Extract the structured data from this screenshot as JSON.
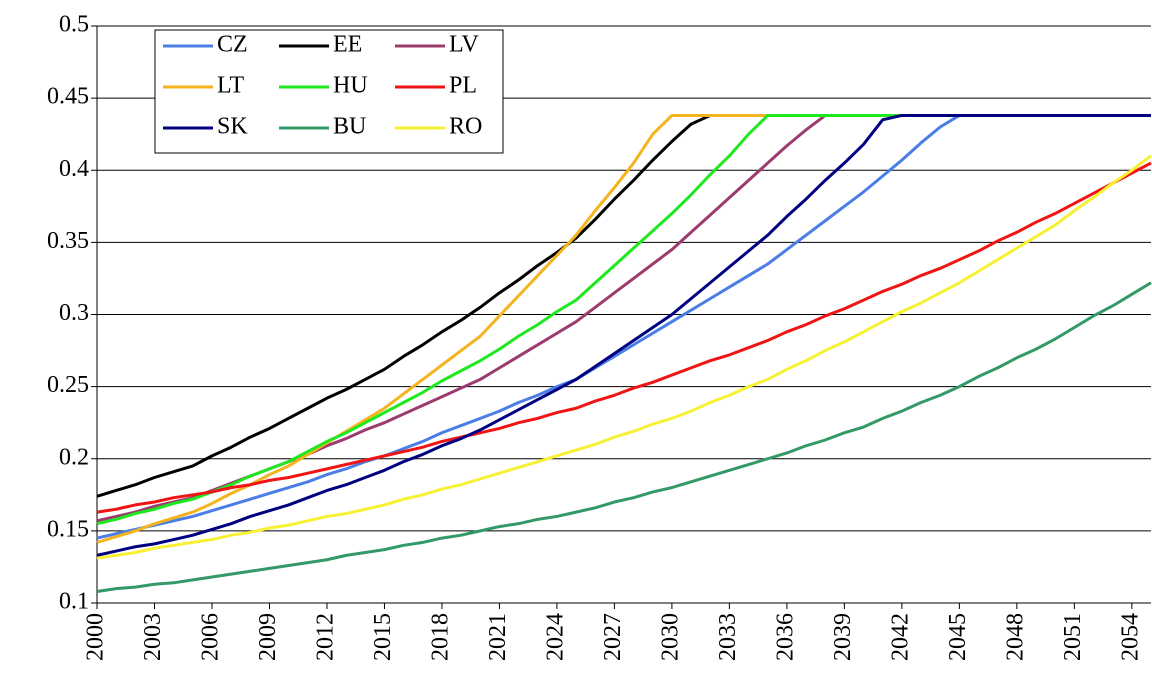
{
  "chart_data": {
    "type": "line",
    "x": [
      2000,
      2001,
      2002,
      2003,
      2004,
      2005,
      2006,
      2007,
      2008,
      2009,
      2010,
      2011,
      2012,
      2013,
      2014,
      2015,
      2016,
      2017,
      2018,
      2019,
      2020,
      2021,
      2022,
      2023,
      2024,
      2025,
      2026,
      2027,
      2028,
      2029,
      2030,
      2031,
      2032,
      2033,
      2034,
      2035,
      2036,
      2037,
      2038,
      2039,
      2040,
      2041,
      2042,
      2043,
      2044,
      2045,
      2046,
      2047,
      2048,
      2049,
      2050,
      2051,
      2052,
      2053,
      2054,
      2055
    ],
    "xlim": [
      2000,
      2055
    ],
    "xticks": [
      2000,
      2003,
      2006,
      2009,
      2012,
      2015,
      2018,
      2021,
      2024,
      2027,
      2030,
      2033,
      2036,
      2039,
      2042,
      2045,
      2048,
      2051,
      2054
    ],
    "ylim": [
      0.1,
      0.5
    ],
    "yticks": [
      0.1,
      0.15,
      0.2,
      0.25,
      0.3,
      0.35,
      0.4,
      0.45,
      0.5
    ],
    "grid": true,
    "legend": "upper left",
    "series": [
      {
        "name": "CZ",
        "color": "#4a7de6",
        "values": [
          0.145,
          0.148,
          0.151,
          0.154,
          0.157,
          0.16,
          0.164,
          0.168,
          0.172,
          0.176,
          0.18,
          0.184,
          0.189,
          0.193,
          0.198,
          0.202,
          0.207,
          0.212,
          0.218,
          0.223,
          0.228,
          0.233,
          0.239,
          0.244,
          0.25,
          0.255,
          0.263,
          0.271,
          0.279,
          0.287,
          0.295,
          0.303,
          0.311,
          0.319,
          0.327,
          0.335,
          0.345,
          0.355,
          0.365,
          0.375,
          0.385,
          0.396,
          0.407,
          0.419,
          0.43,
          0.438,
          0.438,
          0.438,
          0.438,
          0.438,
          0.438,
          0.438,
          0.438,
          0.438,
          0.438,
          0.438
        ]
      },
      {
        "name": "EE",
        "color": "#000000",
        "values": [
          0.174,
          0.178,
          0.182,
          0.187,
          0.191,
          0.195,
          0.202,
          0.208,
          0.215,
          0.221,
          0.228,
          0.235,
          0.242,
          0.248,
          0.255,
          0.262,
          0.271,
          0.279,
          0.288,
          0.296,
          0.305,
          0.315,
          0.324,
          0.334,
          0.343,
          0.353,
          0.366,
          0.38,
          0.393,
          0.407,
          0.42,
          0.432,
          0.438,
          0.438,
          0.438,
          0.438,
          0.438,
          0.438,
          0.438,
          0.438,
          0.438,
          0.438,
          0.438,
          0.438,
          0.438,
          0.438,
          0.438,
          0.438,
          0.438,
          0.438,
          0.438,
          0.438,
          0.438,
          0.438,
          0.438,
          0.438
        ]
      },
      {
        "name": "LV",
        "color": "#9b3b6e",
        "values": [
          0.157,
          0.16,
          0.163,
          0.167,
          0.17,
          0.173,
          0.178,
          0.183,
          0.188,
          0.193,
          0.198,
          0.203,
          0.209,
          0.214,
          0.22,
          0.225,
          0.231,
          0.237,
          0.243,
          0.249,
          0.255,
          0.263,
          0.271,
          0.279,
          0.287,
          0.295,
          0.305,
          0.315,
          0.325,
          0.335,
          0.345,
          0.357,
          0.369,
          0.381,
          0.393,
          0.405,
          0.417,
          0.428,
          0.438,
          0.438,
          0.438,
          0.438,
          0.438,
          0.438,
          0.438,
          0.438,
          0.438,
          0.438,
          0.438,
          0.438,
          0.438,
          0.438,
          0.438,
          0.438,
          0.438,
          0.438
        ]
      },
      {
        "name": "LT",
        "color": "#f5b41e",
        "values": [
          0.142,
          0.146,
          0.15,
          0.155,
          0.159,
          0.163,
          0.169,
          0.176,
          0.182,
          0.189,
          0.195,
          0.203,
          0.211,
          0.219,
          0.227,
          0.235,
          0.245,
          0.255,
          0.265,
          0.275,
          0.285,
          0.299,
          0.313,
          0.327,
          0.341,
          0.355,
          0.372,
          0.388,
          0.405,
          0.425,
          0.438,
          0.438,
          0.438,
          0.438,
          0.438,
          0.438,
          0.438,
          0.438,
          0.438,
          0.438,
          0.438,
          0.438,
          0.438,
          0.438,
          0.438,
          0.438,
          0.438,
          0.438,
          0.438,
          0.438,
          0.438,
          0.438,
          0.438,
          0.438,
          0.438,
          0.438
        ]
      },
      {
        "name": "HU",
        "color": "#1ee81e",
        "values": [
          0.155,
          0.158,
          0.162,
          0.165,
          0.169,
          0.172,
          0.177,
          0.182,
          0.188,
          0.193,
          0.198,
          0.205,
          0.212,
          0.218,
          0.225,
          0.232,
          0.239,
          0.246,
          0.254,
          0.261,
          0.268,
          0.276,
          0.285,
          0.293,
          0.302,
          0.31,
          0.322,
          0.334,
          0.346,
          0.358,
          0.37,
          0.383,
          0.397,
          0.41,
          0.425,
          0.438,
          0.438,
          0.438,
          0.438,
          0.438,
          0.438,
          0.438,
          0.438,
          0.438,
          0.438,
          0.438,
          0.438,
          0.438,
          0.438,
          0.438,
          0.438,
          0.438,
          0.438,
          0.438,
          0.438,
          0.438
        ]
      },
      {
        "name": "PL",
        "color": "#f01414",
        "values": [
          0.163,
          0.165,
          0.168,
          0.17,
          0.173,
          0.175,
          0.177,
          0.18,
          0.182,
          0.185,
          0.187,
          0.19,
          0.193,
          0.196,
          0.199,
          0.202,
          0.205,
          0.208,
          0.212,
          0.215,
          0.218,
          0.221,
          0.225,
          0.228,
          0.232,
          0.235,
          0.24,
          0.244,
          0.249,
          0.253,
          0.258,
          0.263,
          0.268,
          0.272,
          0.277,
          0.282,
          0.288,
          0.293,
          0.299,
          0.304,
          0.31,
          0.316,
          0.321,
          0.327,
          0.332,
          0.338,
          0.344,
          0.351,
          0.357,
          0.364,
          0.37,
          0.377,
          0.384,
          0.391,
          0.398,
          0.405
        ]
      },
      {
        "name": "SK",
        "color": "#000080",
        "values": [
          0.133,
          0.136,
          0.139,
          0.141,
          0.144,
          0.147,
          0.151,
          0.155,
          0.16,
          0.164,
          0.168,
          0.173,
          0.178,
          0.182,
          0.187,
          0.192,
          0.198,
          0.203,
          0.209,
          0.214,
          0.22,
          0.227,
          0.234,
          0.241,
          0.248,
          0.255,
          0.264,
          0.273,
          0.282,
          0.291,
          0.3,
          0.311,
          0.322,
          0.333,
          0.344,
          0.355,
          0.368,
          0.38,
          0.393,
          0.405,
          0.418,
          0.435,
          0.438,
          0.438,
          0.438,
          0.438,
          0.438,
          0.438,
          0.438,
          0.438,
          0.438,
          0.438,
          0.438,
          0.438,
          0.438,
          0.438
        ]
      },
      {
        "name": "BU",
        "color": "#339966",
        "values": [
          0.108,
          0.11,
          0.111,
          0.113,
          0.114,
          0.116,
          0.118,
          0.12,
          0.122,
          0.124,
          0.126,
          0.128,
          0.13,
          0.133,
          0.135,
          0.137,
          0.14,
          0.142,
          0.145,
          0.147,
          0.15,
          0.153,
          0.155,
          0.158,
          0.16,
          0.163,
          0.166,
          0.17,
          0.173,
          0.177,
          0.18,
          0.184,
          0.188,
          0.192,
          0.196,
          0.2,
          0.204,
          0.209,
          0.213,
          0.218,
          0.222,
          0.228,
          0.233,
          0.239,
          0.244,
          0.25,
          0.257,
          0.263,
          0.27,
          0.276,
          0.283,
          0.291,
          0.299,
          0.306,
          0.314,
          0.322
        ]
      },
      {
        "name": "RO",
        "color": "#f8f032",
        "values": [
          0.131,
          0.133,
          0.135,
          0.138,
          0.14,
          0.142,
          0.144,
          0.147,
          0.149,
          0.152,
          0.154,
          0.157,
          0.16,
          0.162,
          0.165,
          0.168,
          0.172,
          0.175,
          0.179,
          0.182,
          0.186,
          0.19,
          0.194,
          0.198,
          0.202,
          0.206,
          0.21,
          0.215,
          0.219,
          0.224,
          0.228,
          0.233,
          0.239,
          0.244,
          0.25,
          0.255,
          0.262,
          0.268,
          0.275,
          0.281,
          0.288,
          0.295,
          0.302,
          0.308,
          0.315,
          0.322,
          0.33,
          0.338,
          0.346,
          0.354,
          0.362,
          0.372,
          0.381,
          0.391,
          0.4,
          0.41
        ]
      }
    ]
  }
}
